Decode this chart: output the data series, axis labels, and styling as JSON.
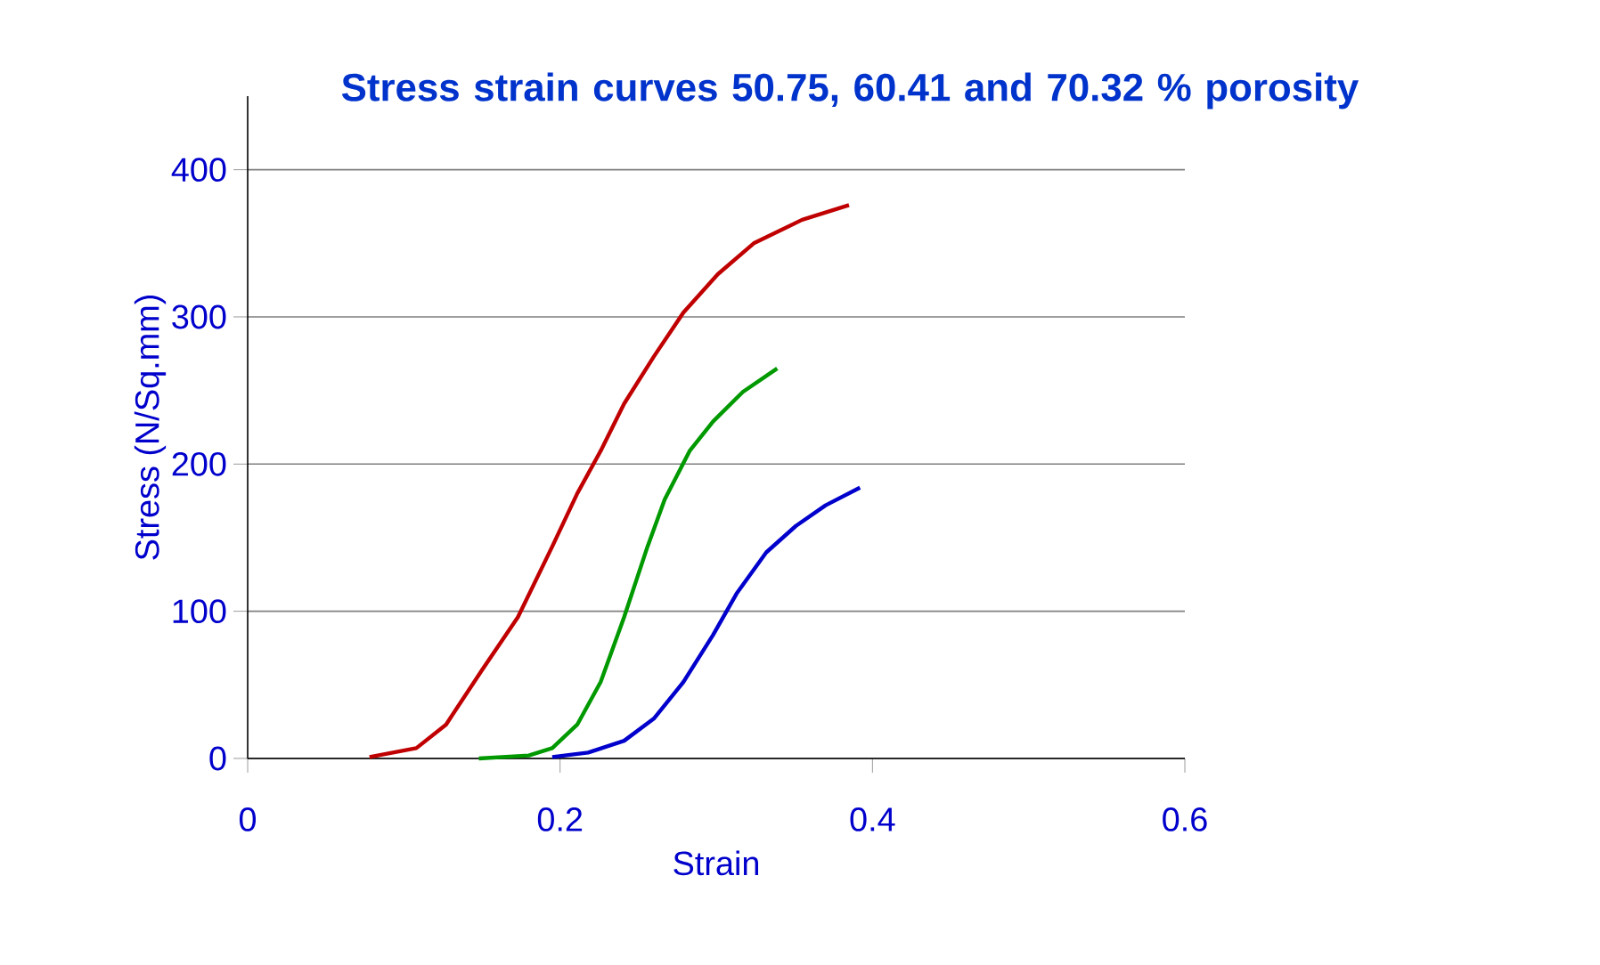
{
  "chart_data": {
    "type": "line",
    "title": "Stress strain curves 50.75, 60.41 and 70.32 % porosity",
    "xlabel": "Strain",
    "ylabel": "Stress (N/Sq.mm)",
    "xlim": [
      0,
      0.6
    ],
    "xticks": [
      0,
      0.2,
      0.4,
      0.6
    ],
    "ylim": [
      0,
      450
    ],
    "yticks": [
      0,
      100,
      200,
      300,
      400
    ],
    "grid": "y",
    "marker": "none",
    "line_style": "solid",
    "series": [
      {
        "color": "#c00000",
        "x": [
          0.078,
          0.108,
          0.127,
          0.15,
          0.173,
          0.195,
          0.211,
          0.226,
          0.241,
          0.26,
          0.279,
          0.301,
          0.324,
          0.355,
          0.385
        ],
        "values": [
          1,
          7,
          23,
          60,
          96,
          144,
          180,
          209,
          241,
          273,
          303,
          329,
          350,
          366,
          376
        ]
      },
      {
        "color": "#009900",
        "x": [
          0.148,
          0.18,
          0.195,
          0.211,
          0.226,
          0.241,
          0.256,
          0.267,
          0.283,
          0.298,
          0.317,
          0.339
        ],
        "values": [
          0,
          2,
          7,
          23,
          52,
          96,
          144,
          176,
          209,
          229,
          249,
          265
        ]
      },
      {
        "color": "#0000cc",
        "x": [
          0.195,
          0.218,
          0.241,
          0.26,
          0.279,
          0.298,
          0.313,
          0.332,
          0.351,
          0.37,
          0.392
        ],
        "values": [
          1,
          4,
          12,
          27,
          52,
          84,
          112,
          140,
          158,
          172,
          184
        ]
      }
    ]
  }
}
